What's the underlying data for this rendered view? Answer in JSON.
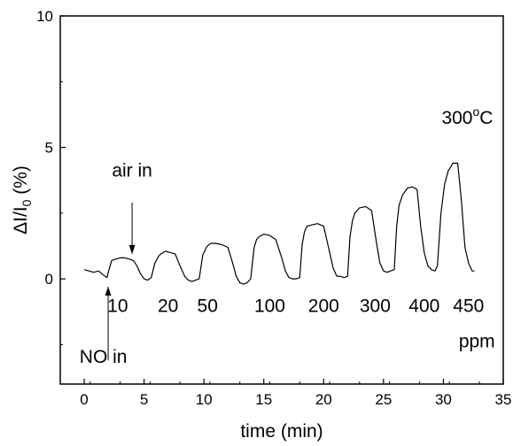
{
  "chart_data": {
    "type": "line",
    "xlabel": "time (min)",
    "ylabel_main": "ΔI/I",
    "ylabel_sub": "0",
    "ylabel_tail": " (%)",
    "xlim": [
      -2,
      35
    ],
    "ylim": [
      -4,
      10
    ],
    "xticks": [
      0,
      5,
      10,
      15,
      20,
      25,
      30,
      35
    ],
    "yticks": [
      0,
      5,
      10
    ],
    "series": [
      {
        "x": [
          0,
          0.4,
          0.8,
          1.2,
          1.6,
          1.9,
          2.1,
          2.3,
          2.6,
          3.0,
          3.4,
          3.8,
          4.1,
          4.4,
          4.7,
          5.0,
          5.3,
          5.6,
          5.9,
          6.2,
          6.4,
          6.6,
          6.8,
          7.2,
          7.6,
          8.0,
          8.4,
          8.7,
          9.0,
          9.3,
          9.6,
          9.9,
          10.2,
          10.4,
          10.6,
          11.0,
          11.5,
          12.0,
          12.4,
          12.7,
          13.0,
          13.3,
          13.6,
          13.9,
          14.2,
          14.4,
          14.6,
          15.0,
          15.5,
          16.0,
          16.5,
          16.8,
          17.1,
          17.4,
          17.7,
          18.0,
          18.2,
          18.4,
          18.6,
          19.0,
          19.5,
          20.0,
          20.5,
          20.8,
          21.1,
          21.4,
          21.7,
          22.0,
          22.2,
          22.4,
          22.6,
          23.0,
          23.5,
          24.0,
          24.4,
          24.7,
          25.0,
          25.3,
          25.6,
          25.9,
          26.1,
          26.3,
          26.6,
          27.0,
          27.4,
          27.8,
          28.1,
          28.4,
          28.7,
          29.0,
          29.3,
          29.5,
          29.8,
          30.1,
          30.4,
          30.8,
          31.2,
          31.5,
          31.8,
          32.1,
          32.4,
          32.6
        ],
        "y": [
          0.35,
          0.3,
          0.25,
          0.3,
          0.15,
          0.05,
          0.4,
          0.7,
          0.75,
          0.8,
          0.8,
          0.75,
          0.7,
          0.5,
          0.2,
          0.0,
          -0.05,
          0.05,
          0.6,
          0.85,
          0.95,
          1.0,
          1.05,
          1.0,
          0.95,
          0.5,
          0.1,
          -0.05,
          -0.1,
          -0.05,
          0.0,
          0.9,
          1.2,
          1.3,
          1.35,
          1.35,
          1.3,
          1.2,
          0.6,
          0.1,
          -0.15,
          -0.2,
          -0.15,
          0.0,
          1.2,
          1.5,
          1.6,
          1.7,
          1.65,
          1.5,
          0.8,
          0.3,
          0.05,
          0.0,
          0.0,
          0.05,
          1.3,
          1.8,
          2.0,
          2.05,
          2.1,
          2.0,
          1.0,
          0.4,
          0.1,
          0.1,
          0.05,
          0.1,
          1.6,
          2.2,
          2.5,
          2.7,
          2.75,
          2.6,
          1.4,
          0.6,
          0.3,
          0.25,
          0.3,
          0.35,
          2.0,
          2.8,
          3.2,
          3.45,
          3.5,
          3.4,
          2.0,
          1.0,
          0.5,
          0.35,
          0.3,
          0.5,
          2.5,
          3.6,
          4.1,
          4.4,
          4.4,
          3.0,
          1.2,
          0.6,
          0.3,
          0.3
        ]
      }
    ],
    "concentration_labels": [
      "10",
      "20",
      "50",
      "100",
      "200",
      "300",
      "400",
      "450"
    ],
    "concentration_x": [
      2.8,
      7.0,
      10.3,
      15.5,
      20.0,
      24.3,
      28.4,
      32.1
    ],
    "concentration_y": -1.25,
    "annotations": {
      "air_in": "air in",
      "no_in": "NO in",
      "temperature": "300°C",
      "temperature_main": "300",
      "temperature_sup": "o",
      "temperature_tail": "C",
      "unit": "ppm"
    },
    "arrows": {
      "air_in": {
        "x": 4.0,
        "y_from": 2.9,
        "y_to": 0.95
      },
      "no_in": {
        "x": 2.0,
        "y_from": -3.1,
        "y_to": -0.3
      }
    },
    "annotation_pos": {
      "air_in": {
        "x": 4.0,
        "y": 3.9
      },
      "no_in": {
        "x": 1.6,
        "y": -3.2
      },
      "temperature": {
        "x": 32.0,
        "y": 5.9
      },
      "unit": {
        "x": 32.8,
        "y": -2.6
      }
    },
    "grid": false,
    "legend": "none"
  }
}
